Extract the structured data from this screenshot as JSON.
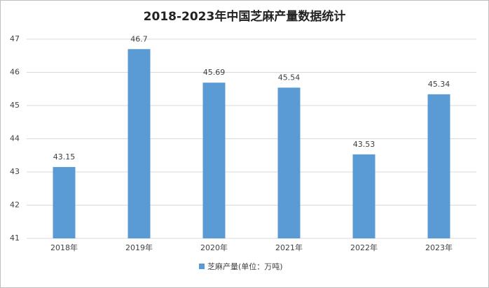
{
  "chart_data": {
    "type": "bar",
    "title": "2018-2023年中国芝麻产量数据统计",
    "categories": [
      "2018年",
      "2019年",
      "2020年",
      "2021年",
      "2022年",
      "2023年"
    ],
    "series": [
      {
        "name": "芝麻产量(单位：万吨)",
        "color": "#5b9bd5",
        "values": [
          43.15,
          46.7,
          45.69,
          45.54,
          43.53,
          45.34
        ]
      }
    ],
    "ylim": [
      41,
      47
    ],
    "yticks": [
      41,
      42,
      43,
      44,
      45,
      46,
      47
    ],
    "grid": true,
    "legend": "bottom"
  }
}
